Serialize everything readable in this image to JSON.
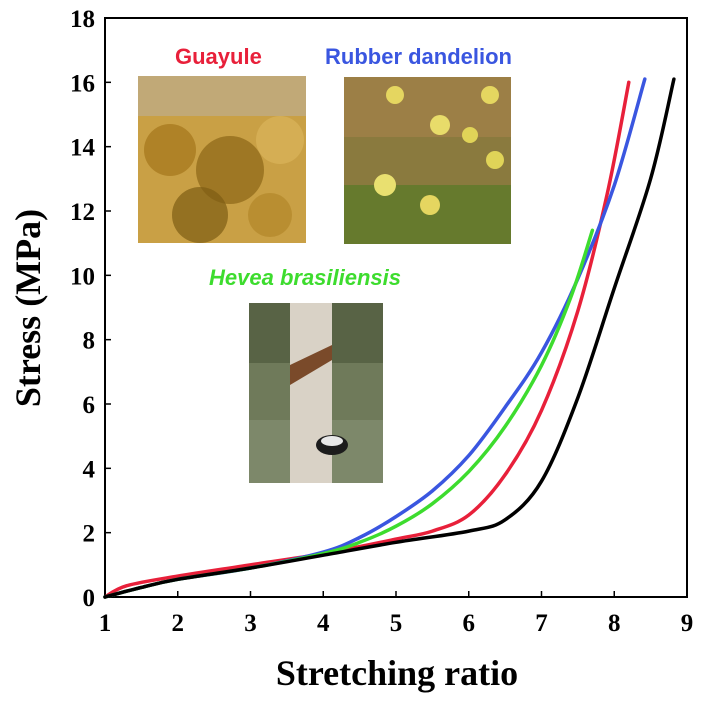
{
  "chart_data": {
    "type": "line",
    "xlabel": "Stretching ratio",
    "ylabel": "Stress (MPa)",
    "xlim": [
      1,
      9
    ],
    "ylim": [
      0,
      18
    ],
    "xticks": [
      1,
      2,
      3,
      4,
      5,
      6,
      7,
      8,
      9
    ],
    "yticks": [
      0,
      2,
      4,
      6,
      8,
      10,
      12,
      14,
      16,
      18
    ],
    "grid": false,
    "legend": "none",
    "series": [
      {
        "name": "Guayule",
        "color": "#e8203a",
        "points": [
          [
            1,
            0
          ],
          [
            1.3,
            0.35
          ],
          [
            2,
            0.65
          ],
          [
            3,
            1.0
          ],
          [
            4,
            1.35
          ],
          [
            5,
            1.8
          ],
          [
            5.5,
            2.05
          ],
          [
            6,
            2.55
          ],
          [
            6.5,
            3.8
          ],
          [
            7,
            5.8
          ],
          [
            7.5,
            8.9
          ],
          [
            7.9,
            12.5
          ],
          [
            8.2,
            16.0
          ]
        ]
      },
      {
        "name": "Rubber dandelion",
        "color": "#3a56e0",
        "points": [
          [
            1,
            0
          ],
          [
            1.5,
            0.3
          ],
          [
            2,
            0.55
          ],
          [
            3,
            0.9
          ],
          [
            4,
            1.4
          ],
          [
            4.5,
            1.85
          ],
          [
            5,
            2.5
          ],
          [
            5.5,
            3.3
          ],
          [
            6,
            4.4
          ],
          [
            6.5,
            5.9
          ],
          [
            7,
            7.6
          ],
          [
            7.5,
            9.9
          ],
          [
            8,
            12.8
          ],
          [
            8.42,
            16.1
          ]
        ]
      },
      {
        "name": "Hevea brasiliensis",
        "color": "#3ddc2e",
        "points": [
          [
            1,
            0
          ],
          [
            1.5,
            0.3
          ],
          [
            2,
            0.55
          ],
          [
            3,
            0.9
          ],
          [
            4,
            1.35
          ],
          [
            4.5,
            1.7
          ],
          [
            5,
            2.2
          ],
          [
            5.5,
            2.9
          ],
          [
            6,
            3.9
          ],
          [
            6.5,
            5.3
          ],
          [
            7,
            7.2
          ],
          [
            7.4,
            9.3
          ],
          [
            7.7,
            11.4
          ]
        ]
      },
      {
        "points": [
          [
            1,
            0
          ],
          [
            1.5,
            0.3
          ],
          [
            2,
            0.55
          ],
          [
            3,
            0.9
          ],
          [
            4,
            1.3
          ],
          [
            5,
            1.7
          ],
          [
            6,
            2.05
          ],
          [
            6.5,
            2.4
          ],
          [
            7,
            3.6
          ],
          [
            7.5,
            6.2
          ],
          [
            8,
            9.6
          ],
          [
            8.5,
            13.0
          ],
          [
            8.82,
            16.1
          ]
        ],
        "color": "#000000"
      }
    ],
    "annotations": [
      {
        "text": "Guayule",
        "color": "#e8203a"
      },
      {
        "text": "Rubber dandelion",
        "color": "#3a56e0"
      },
      {
        "text": "Hevea brasiliensis",
        "color": "#3ddc2e"
      }
    ]
  }
}
